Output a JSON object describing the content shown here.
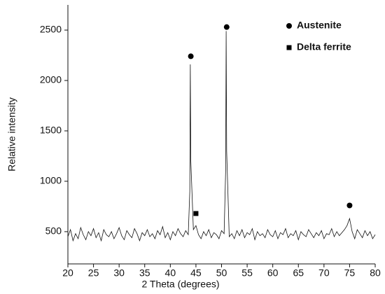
{
  "chart_data": {
    "type": "line",
    "x_label": "2 Theta (degrees)",
    "y_label": "Relative intensity",
    "xlim": [
      20,
      80
    ],
    "ylim": [
      180,
      2750
    ],
    "xticks": [
      20,
      25,
      30,
      35,
      40,
      45,
      50,
      55,
      60,
      65,
      70,
      75,
      80
    ],
    "yticks": [
      500,
      1000,
      1500,
      2000,
      2500
    ],
    "legend": "top-right",
    "series": [
      {
        "color": "#111111",
        "x": [
          20,
          20.5,
          21,
          21.5,
          22,
          22.5,
          23,
          23.5,
          24,
          24.5,
          25,
          25.5,
          26,
          26.5,
          27,
          27.5,
          28,
          28.5,
          29,
          29.5,
          30,
          30.5,
          31,
          31.5,
          32,
          32.5,
          33,
          33.5,
          34,
          34.5,
          35,
          35.5,
          36,
          36.5,
          37,
          37.5,
          38,
          38.5,
          39,
          39.5,
          40,
          40.5,
          41,
          41.5,
          42,
          42.5,
          43,
          43.5,
          43.8,
          43.9,
          44,
          44.5,
          45,
          45.5,
          46,
          46.5,
          47,
          47.5,
          48,
          48.5,
          49,
          49.5,
          50,
          50.5,
          50.8,
          50.9,
          51,
          51.5,
          52,
          52.5,
          53,
          53.5,
          54,
          54.5,
          55,
          55.5,
          56,
          56.5,
          57,
          57.5,
          58,
          58.5,
          59,
          59.5,
          60,
          60.5,
          61,
          61.5,
          62,
          62.5,
          63,
          63.5,
          64,
          64.5,
          65,
          65.5,
          66,
          66.5,
          67,
          67.5,
          68,
          68.5,
          69,
          69.5,
          70,
          70.5,
          71,
          71.5,
          72,
          72.5,
          73,
          73.5,
          74,
          74.5,
          75,
          75.5,
          76,
          76.5,
          77,
          77.5,
          78,
          78.5,
          79,
          79.5,
          80
        ],
        "values": [
          450,
          520,
          410,
          480,
          430,
          540,
          470,
          420,
          500,
          460,
          530,
          440,
          490,
          410,
          520,
          470,
          450,
          500,
          430,
          480,
          540,
          460,
          420,
          510,
          470,
          440,
          530,
          480,
          410,
          490,
          460,
          520,
          450,
          480,
          430,
          510,
          470,
          550,
          440,
          490,
          420,
          500,
          460,
          530,
          480,
          450,
          510,
          470,
          900,
          2160,
          1200,
          520,
          560,
          470,
          430,
          500,
          460,
          520,
          440,
          490,
          470,
          430,
          510,
          480,
          1100,
          2490,
          1300,
          450,
          480,
          430,
          510,
          460,
          520,
          440,
          490,
          470,
          530,
          420,
          500,
          460,
          480,
          440,
          520,
          470,
          450,
          510,
          430,
          490,
          470,
          530,
          440,
          480,
          460,
          510,
          420,
          500,
          470,
          450,
          520,
          480,
          440,
          490,
          460,
          510,
          430,
          480,
          470,
          530,
          450,
          500,
          460,
          490,
          520,
          560,
          630,
          500,
          430,
          520,
          480,
          440,
          510,
          460,
          500,
          430,
          470
        ]
      }
    ],
    "phases": [
      {
        "name": "Austenite",
        "shape": "circle",
        "points": [
          [
            44,
            2240
          ],
          [
            51,
            2530
          ],
          [
            75,
            760
          ]
        ]
      },
      {
        "name": "Delta ferrite",
        "shape": "square",
        "points": [
          [
            45,
            680
          ]
        ]
      }
    ]
  }
}
